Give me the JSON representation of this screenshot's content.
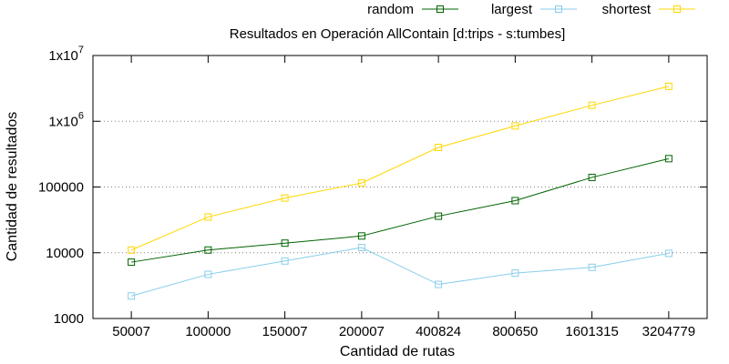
{
  "chart_data": {
    "type": "line",
    "title": "Resultados en Operación AllContain [d:trips - s:tumbes]",
    "xlabel": "Cantidad de rutas",
    "ylabel": "Cantidad de resultados",
    "yscale": "log",
    "ylim": [
      1000,
      10000000
    ],
    "y_ticks": [
      {
        "value": 1000,
        "label": "1000",
        "sup": ""
      },
      {
        "value": 10000,
        "label": "10000",
        "sup": ""
      },
      {
        "value": 100000,
        "label": "100000",
        "sup": ""
      },
      {
        "value": 1000000,
        "label": "1x10",
        "sup": "6"
      },
      {
        "value": 10000000,
        "label": "1x10",
        "sup": "7"
      }
    ],
    "grid": "horizontal dotted",
    "legend_position": "top-right",
    "categories": [
      "50007",
      "100000",
      "150007",
      "200007",
      "400824",
      "800650",
      "1601315",
      "3204779"
    ],
    "series": [
      {
        "name": "random",
        "color": "#006400",
        "marker": "square-open",
        "values": [
          7200,
          11000,
          14000,
          18000,
          36000,
          62000,
          140000,
          270000
        ]
      },
      {
        "name": "largest",
        "color": "#87CEEB",
        "marker": "square-open",
        "values": [
          2200,
          4700,
          7500,
          12000,
          3300,
          4900,
          6000,
          9800
        ]
      },
      {
        "name": "shortest",
        "color": "#FFD700",
        "marker": "square-open",
        "values": [
          11000,
          35000,
          68000,
          115000,
          400000,
          850000,
          1750000,
          3400000
        ]
      }
    ]
  }
}
